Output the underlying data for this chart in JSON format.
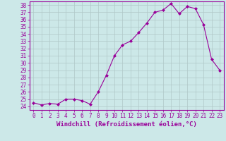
{
  "x": [
    0,
    1,
    2,
    3,
    4,
    5,
    6,
    7,
    8,
    9,
    10,
    11,
    12,
    13,
    14,
    15,
    16,
    17,
    18,
    19,
    20,
    21,
    22,
    23
  ],
  "y": [
    24.5,
    24.2,
    24.4,
    24.3,
    25.0,
    25.0,
    24.8,
    24.3,
    26.0,
    28.3,
    31.0,
    32.5,
    33.0,
    34.2,
    35.5,
    37.0,
    37.3,
    38.2,
    36.8,
    37.8,
    37.5,
    35.3,
    30.5,
    29.0
  ],
  "line_color": "#990099",
  "marker": "D",
  "marker_size": 2.0,
  "bg_color": "#cce8e8",
  "grid_color": "#b0c8c8",
  "xlabel": "Windchill (Refroidissement éolien,°C)",
  "xlabel_fontsize": 6.5,
  "tick_fontsize": 5.5,
  "ylim": [
    23.5,
    38.5
  ],
  "xlim": [
    -0.5,
    23.5
  ],
  "yticks": [
    24,
    25,
    26,
    27,
    28,
    29,
    30,
    31,
    32,
    33,
    34,
    35,
    36,
    37,
    38
  ],
  "xticks": [
    0,
    1,
    2,
    3,
    4,
    5,
    6,
    7,
    8,
    9,
    10,
    11,
    12,
    13,
    14,
    15,
    16,
    17,
    18,
    19,
    20,
    21,
    22,
    23
  ]
}
